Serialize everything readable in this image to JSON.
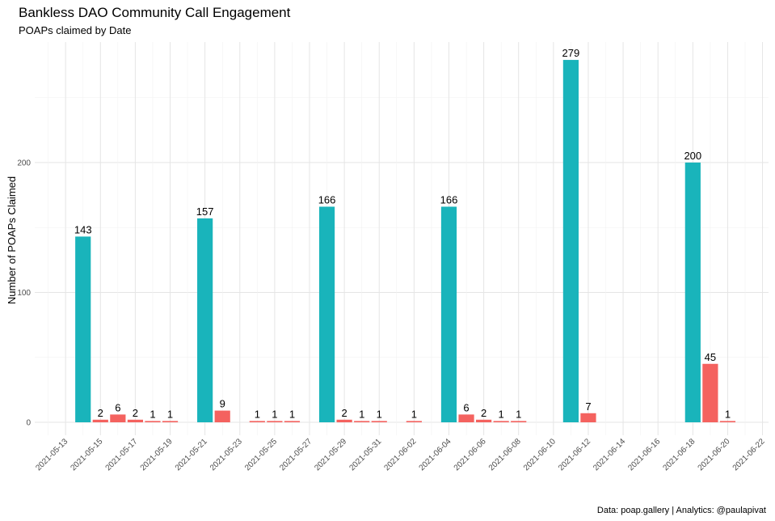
{
  "chart_data": {
    "type": "bar",
    "title": "Bankless DAO Community Call Engagement",
    "subtitle": "POAPs claimed by Date",
    "xlabel": "",
    "ylabel": "Number of POAPs Claimed",
    "caption": "Data: poap.gallery | Analytics: @paulapivat",
    "grid": true,
    "legend": "none",
    "ylim": [
      0,
      290
    ],
    "y_ticks": [
      0,
      100,
      200
    ],
    "x_range": [
      "2021-05-12",
      "2021-06-23"
    ],
    "x_ticks": [
      "2021-05-13",
      "2021-05-15",
      "2021-05-17",
      "2021-05-19",
      "2021-05-21",
      "2021-05-23",
      "2021-05-25",
      "2021-05-27",
      "2021-05-29",
      "2021-05-31",
      "2021-06-02",
      "2021-06-04",
      "2021-06-06",
      "2021-06-08",
      "2021-06-10",
      "2021-06-12",
      "2021-06-14",
      "2021-06-16",
      "2021-06-18",
      "2021-06-20",
      "2021-06-22"
    ],
    "colors": {
      "teal": "#19b4bb",
      "red": "#f4625f"
    },
    "bars": [
      {
        "date": "2021-05-14",
        "value": 143,
        "color": "teal"
      },
      {
        "date": "2021-05-15",
        "value": 2,
        "color": "red"
      },
      {
        "date": "2021-05-16",
        "value": 6,
        "color": "red"
      },
      {
        "date": "2021-05-17",
        "value": 2,
        "color": "red"
      },
      {
        "date": "2021-05-18",
        "value": 1,
        "color": "red"
      },
      {
        "date": "2021-05-19",
        "value": 1,
        "color": "red"
      },
      {
        "date": "2021-05-21",
        "value": 157,
        "color": "teal"
      },
      {
        "date": "2021-05-22",
        "value": 9,
        "color": "red"
      },
      {
        "date": "2021-05-24",
        "value": 1,
        "color": "red"
      },
      {
        "date": "2021-05-25",
        "value": 1,
        "color": "red"
      },
      {
        "date": "2021-05-26",
        "value": 1,
        "color": "red"
      },
      {
        "date": "2021-05-28",
        "value": 166,
        "color": "teal"
      },
      {
        "date": "2021-05-29",
        "value": 2,
        "color": "red"
      },
      {
        "date": "2021-05-30",
        "value": 1,
        "color": "red"
      },
      {
        "date": "2021-05-31",
        "value": 1,
        "color": "red"
      },
      {
        "date": "2021-06-02",
        "value": 1,
        "color": "red"
      },
      {
        "date": "2021-06-04",
        "value": 166,
        "color": "teal"
      },
      {
        "date": "2021-06-05",
        "value": 6,
        "color": "red"
      },
      {
        "date": "2021-06-06",
        "value": 2,
        "color": "red"
      },
      {
        "date": "2021-06-07",
        "value": 1,
        "color": "red"
      },
      {
        "date": "2021-06-08",
        "value": 1,
        "color": "red"
      },
      {
        "date": "2021-06-11",
        "value": 279,
        "color": "teal"
      },
      {
        "date": "2021-06-12",
        "value": 7,
        "color": "red"
      },
      {
        "date": "2021-06-18",
        "value": 200,
        "color": "teal"
      },
      {
        "date": "2021-06-19",
        "value": 45,
        "color": "red"
      },
      {
        "date": "2021-06-20",
        "value": 1,
        "color": "red"
      }
    ]
  }
}
